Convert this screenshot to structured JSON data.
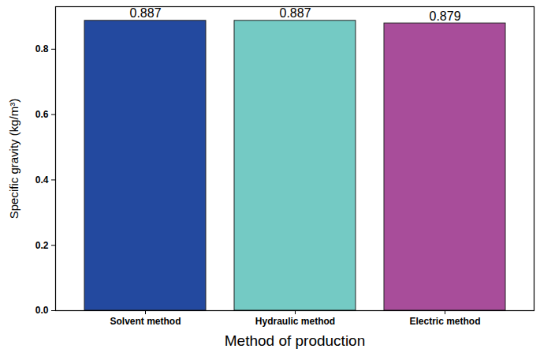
{
  "chart_data": {
    "type": "bar",
    "x_label": "Method of production",
    "y_label": "Specific gravity (kg/m³)",
    "categories": [
      "Solvent method",
      "Hydraulic method",
      "Electric method"
    ],
    "values": [
      0.887,
      0.887,
      0.879
    ],
    "colors": [
      "#23499f",
      "#74cac4",
      "#a84d9a"
    ],
    "ylim": [
      0,
      0.93
    ],
    "yticks": [
      {
        "value": 0,
        "label": "0.0"
      },
      0.2,
      0.4,
      0.6,
      0.8
    ],
    "data_labels": true,
    "grid": false
  }
}
